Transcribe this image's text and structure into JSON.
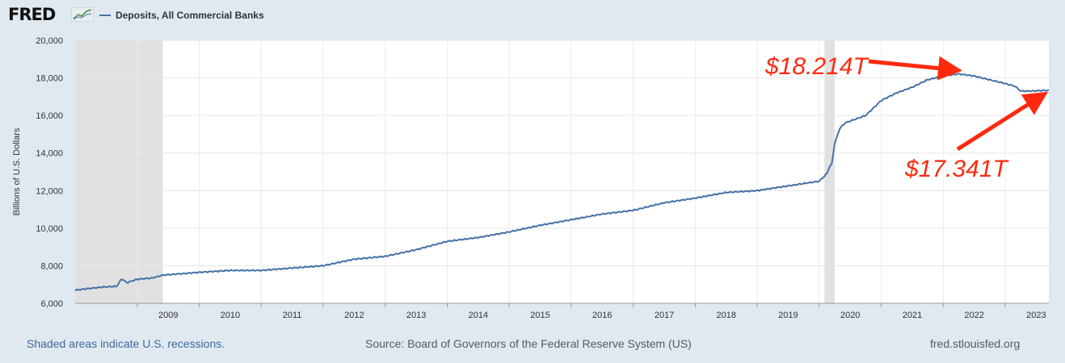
{
  "brand": {
    "logo_text": "FRED",
    "logo_icon": "trend-graph-icon"
  },
  "colors": {
    "series": "#4572a7",
    "annotation": "#ff2a0e",
    "recession": "#e1e1e1"
  },
  "footer": {
    "recession_note": "Shaded areas indicate U.S. recessions.",
    "source": "Source: Board of Governors of the Federal Reserve System (US)",
    "site": "fred.stlouisfed.org"
  },
  "annotations": {
    "peak": {
      "label": "$18.214T",
      "value": 18214,
      "date": "2022-04"
    },
    "latest": {
      "label": "$17.341T",
      "value": 17341,
      "date": "2023-09"
    }
  },
  "chart_data": {
    "type": "line",
    "title": "",
    "xlabel": "",
    "ylabel": "Billions of U.S. Dollars",
    "xlim": [
      "2008-01-01",
      "2023-09-15"
    ],
    "ylim": [
      6000,
      20000
    ],
    "yticks": [
      6000,
      8000,
      10000,
      12000,
      14000,
      16000,
      18000,
      20000
    ],
    "ytick_labels": [
      "6,000",
      "8,000",
      "10,000",
      "12,000",
      "14,000",
      "16,000",
      "18,000",
      "20,000"
    ],
    "xticks": [
      "2009",
      "2010",
      "2011",
      "2012",
      "2013",
      "2014",
      "2015",
      "2016",
      "2017",
      "2018",
      "2019",
      "2020",
      "2021",
      "2022",
      "2023"
    ],
    "grid": true,
    "legend": "top-left",
    "recessions": [
      [
        "2008-01-01",
        "2009-06-01"
      ],
      [
        "2020-02-01",
        "2020-04-01"
      ]
    ],
    "series": [
      {
        "name": "Deposits, All Commercial Banks",
        "x": [
          "2008-01-01",
          "2008-04-01",
          "2008-07-01",
          "2008-09-01",
          "2008-10-01",
          "2008-11-01",
          "2009-01-01",
          "2009-04-01",
          "2009-06-01",
          "2010-01-01",
          "2010-07-01",
          "2011-01-01",
          "2011-07-01",
          "2012-01-01",
          "2012-07-01",
          "2013-01-01",
          "2013-07-01",
          "2014-01-01",
          "2014-07-01",
          "2015-01-01",
          "2015-07-01",
          "2016-01-01",
          "2016-07-01",
          "2017-01-01",
          "2017-07-01",
          "2018-01-01",
          "2018-07-01",
          "2019-01-01",
          "2019-07-01",
          "2020-01-01",
          "2020-02-15",
          "2020-03-01",
          "2020-03-15",
          "2020-04-01",
          "2020-05-01",
          "2020-06-01",
          "2020-07-01",
          "2020-10-01",
          "2021-01-01",
          "2021-04-01",
          "2021-07-01",
          "2021-10-01",
          "2022-01-01",
          "2022-04-01",
          "2022-07-01",
          "2022-10-01",
          "2023-01-01",
          "2023-03-01",
          "2023-04-01",
          "2023-06-01",
          "2023-09-15"
        ],
        "y": [
          6700,
          6800,
          6880,
          6900,
          7300,
          7100,
          7280,
          7350,
          7500,
          7650,
          7750,
          7750,
          7880,
          8000,
          8350,
          8500,
          8850,
          9300,
          9500,
          9800,
          10150,
          10450,
          10750,
          10950,
          11350,
          11600,
          11900,
          12000,
          12250,
          12500,
          12900,
          13250,
          13400,
          14500,
          15300,
          15600,
          15700,
          16000,
          16800,
          17200,
          17500,
          17900,
          18100,
          18214,
          18100,
          17900,
          17700,
          17550,
          17300,
          17300,
          17341
        ]
      }
    ]
  }
}
